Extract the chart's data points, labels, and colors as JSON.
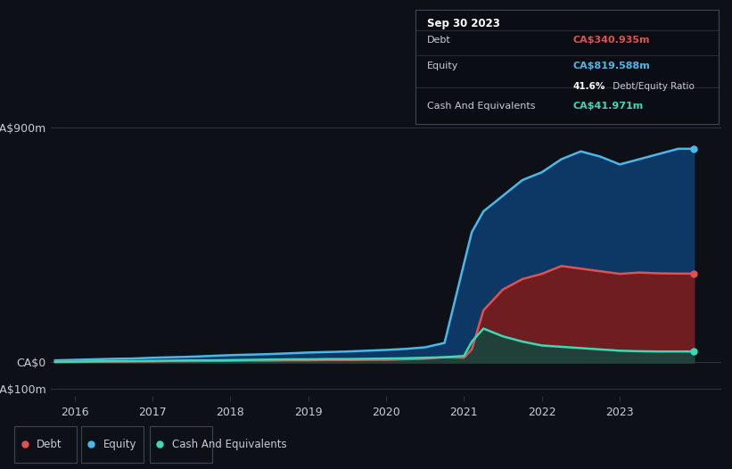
{
  "bg_color": "#0d1117",
  "plot_bg_color": "#0d1117",
  "grid_color": "#2a3545",
  "text_color": "#c8cdd4",
  "debt_color": "#e05252",
  "equity_color": "#4ab8e8",
  "cash_color": "#3dd9b3",
  "debt_fill": "#7a1a1a",
  "equity_fill": "#0d3d6e",
  "cash_fill": "#0d4a40",
  "ylabel_900": "CA$900m",
  "ylabel_0": "CA$0",
  "ylabel_neg100": "-CA$100m",
  "info_date": "Sep 30 2023",
  "info_debt_label": "Debt",
  "info_debt_value": "CA$340.935m",
  "info_equity_label": "Equity",
  "info_equity_value": "CA$819.588m",
  "info_ratio": "41.6%",
  "info_ratio_label": " Debt/Equity Ratio",
  "info_cash_label": "Cash And Equivalents",
  "info_cash_value": "CA$41.971m",
  "legend_debt": "Debt",
  "legend_equity": "Equity",
  "legend_cash": "Cash And Equivalents",
  "xlim_start": 2015.7,
  "xlim_end": 2024.3,
  "ylim_min": -130,
  "ylim_max": 950,
  "years": [
    2015.75,
    2016.0,
    2016.25,
    2016.5,
    2016.75,
    2017.0,
    2017.25,
    2017.5,
    2017.75,
    2018.0,
    2018.25,
    2018.5,
    2018.75,
    2019.0,
    2019.25,
    2019.5,
    2019.75,
    2020.0,
    2020.25,
    2020.5,
    2020.75,
    2021.0,
    2021.1,
    2021.25,
    2021.5,
    2021.75,
    2022.0,
    2022.25,
    2022.5,
    2022.75,
    2023.0,
    2023.25,
    2023.5,
    2023.75,
    2023.95
  ],
  "equity": [
    8,
    10,
    12,
    14,
    15,
    18,
    20,
    22,
    25,
    28,
    30,
    32,
    35,
    38,
    40,
    42,
    45,
    48,
    52,
    58,
    75,
    380,
    500,
    580,
    640,
    700,
    730,
    780,
    810,
    790,
    760,
    780,
    800,
    820,
    820
  ],
  "debt": [
    2,
    2,
    3,
    3,
    4,
    4,
    5,
    5,
    6,
    6,
    7,
    7,
    8,
    8,
    9,
    9,
    10,
    10,
    12,
    14,
    20,
    18,
    50,
    200,
    280,
    320,
    340,
    370,
    360,
    350,
    340,
    345,
    342,
    341,
    341
  ],
  "cash": [
    2,
    3,
    4,
    5,
    5,
    6,
    7,
    8,
    8,
    9,
    10,
    11,
    12,
    12,
    13,
    13,
    14,
    15,
    16,
    18,
    20,
    25,
    80,
    130,
    100,
    80,
    65,
    60,
    55,
    50,
    45,
    43,
    42,
    42,
    42
  ]
}
